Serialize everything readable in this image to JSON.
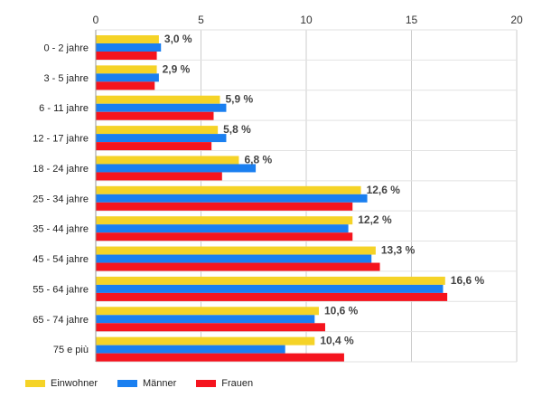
{
  "chart_data": {
    "type": "bar",
    "orientation": "horizontal",
    "categories": [
      "0 - 2 jahre",
      "3 - 5 jahre",
      "6 - 11 jahre",
      "12 - 17 jahre",
      "18 - 24 jahre",
      "25 - 34 jahre",
      "35 - 44 jahre",
      "45 - 54 jahre",
      "55 - 64 jahre",
      "65 - 74 jahre",
      "75 e più"
    ],
    "series": [
      {
        "name": "Einwohner",
        "color": "#f5d327",
        "values": [
          3.0,
          2.9,
          5.9,
          5.8,
          6.8,
          12.6,
          12.2,
          13.3,
          16.6,
          10.6,
          10.4
        ],
        "labels": [
          "3,0 %",
          "2,9 %",
          "5,9 %",
          "5,8 %",
          "6,8 %",
          "12,6 %",
          "12,2 %",
          "13,3 %",
          "16,6 %",
          "10,6 %",
          "10,4 %"
        ]
      },
      {
        "name": "Männer",
        "color": "#1a7ff0",
        "values": [
          3.1,
          3.0,
          6.2,
          6.2,
          7.6,
          12.9,
          12.0,
          13.1,
          16.5,
          10.4,
          9.0
        ]
      },
      {
        "name": "Frauen",
        "color": "#f5141e",
        "values": [
          2.9,
          2.8,
          5.6,
          5.5,
          6.0,
          12.2,
          12.2,
          13.5,
          16.7,
          10.9,
          11.8
        ]
      }
    ],
    "xlim": [
      0,
      20
    ],
    "xticks": [
      0,
      5,
      10,
      15,
      20
    ],
    "grid": true,
    "legend_position": "bottom-left"
  }
}
